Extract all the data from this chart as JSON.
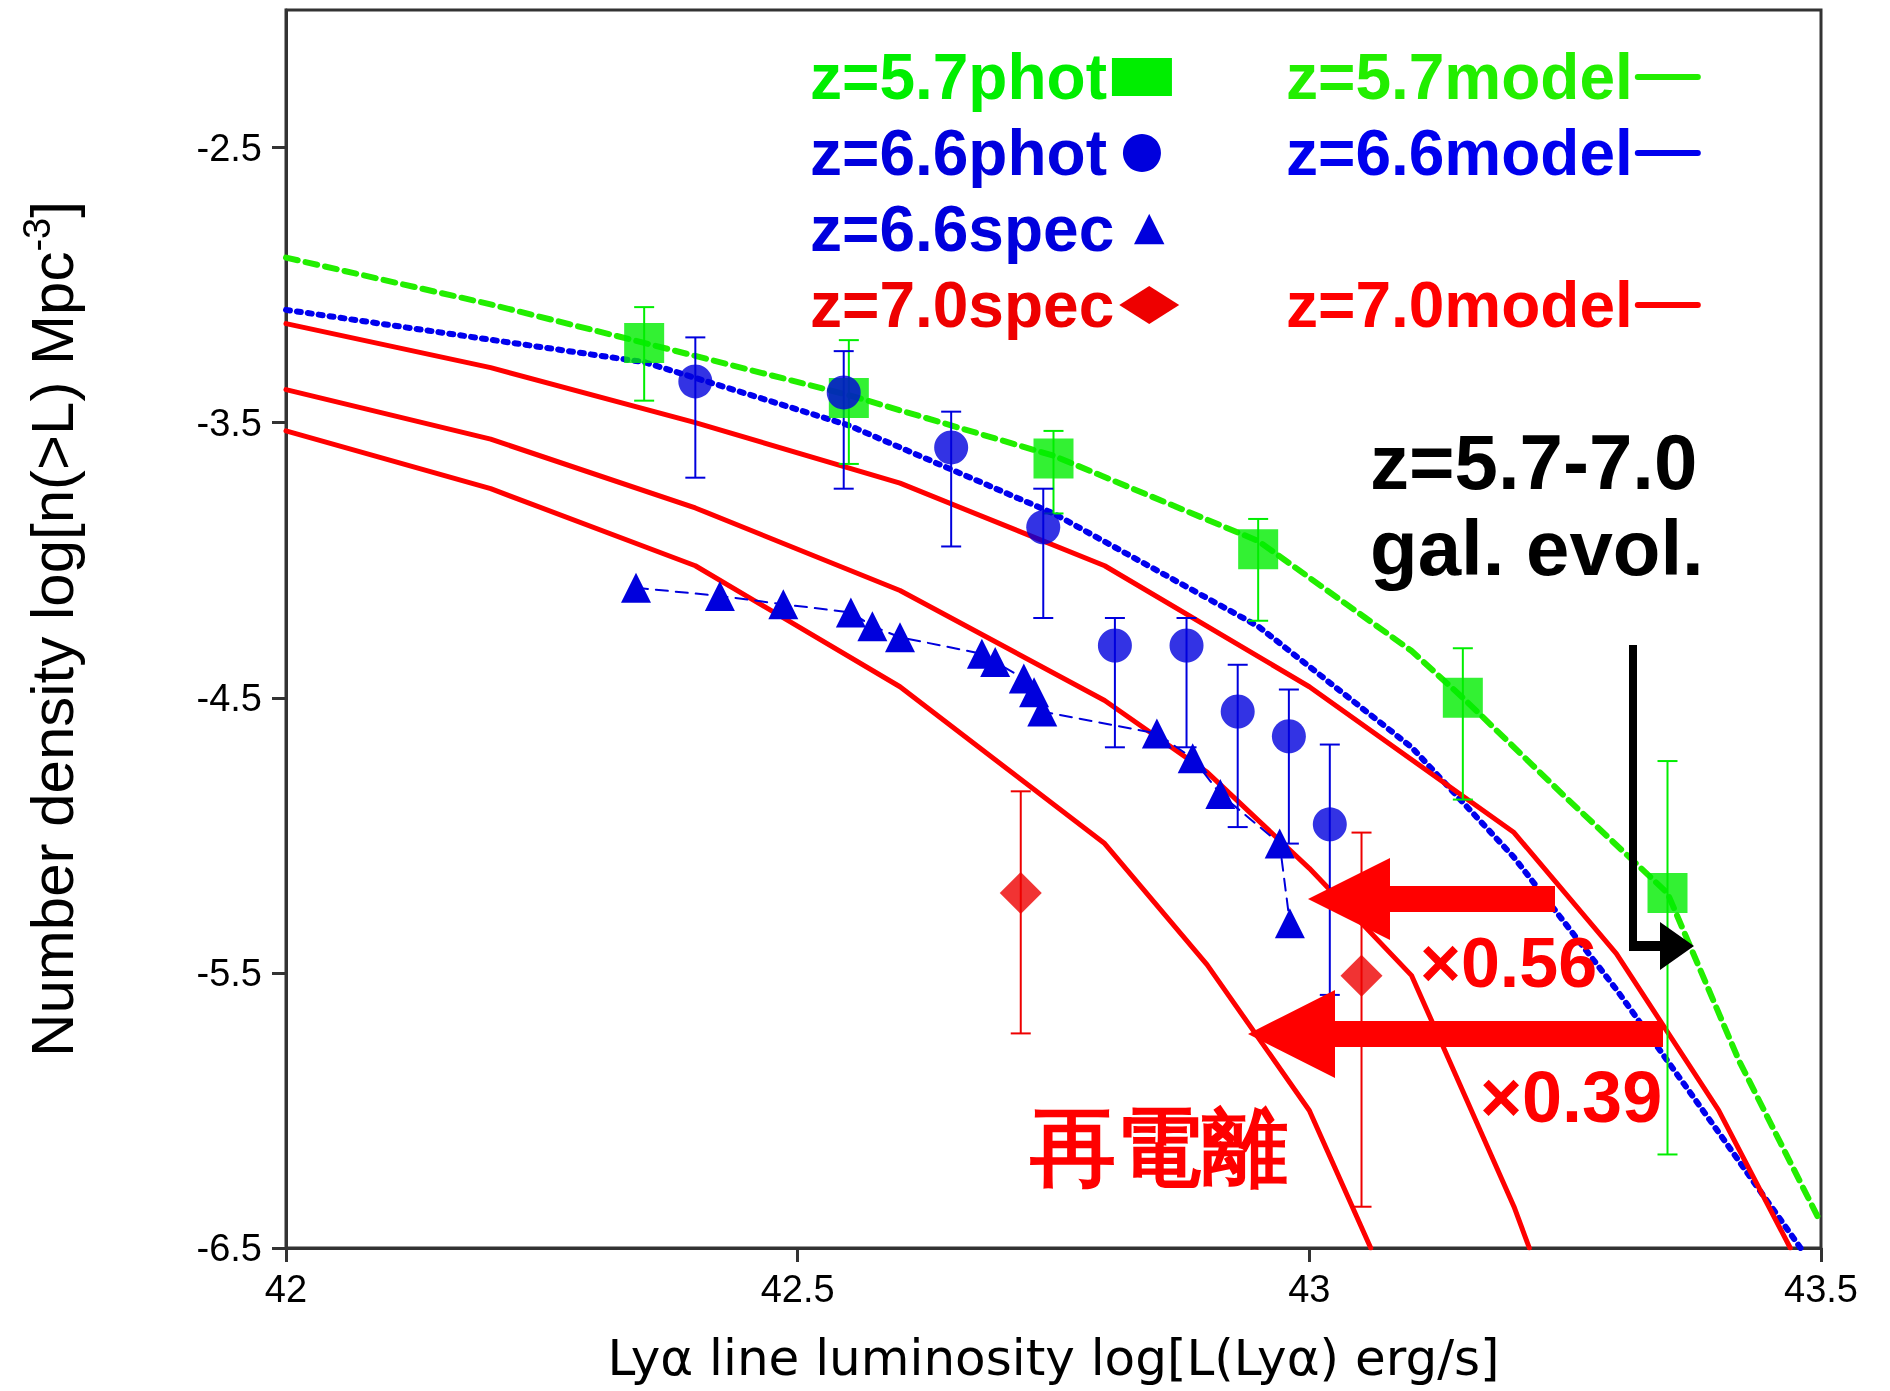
{
  "chart_data": {
    "type": "line",
    "xlabel": "Lyα line luminosity log[L(Lyα) erg/s]",
    "ylabel": "Number density log[n(>L) Mpc$^{-3}$]",
    "xlim": [
      42,
      43.5
    ],
    "xticks": [
      42,
      42.5,
      43,
      43.5
    ],
    "ylim": [
      -6.5,
      -2.0
    ],
    "yticks": [
      -2.5,
      -3.5,
      -4.5,
      -5.5,
      -6.5
    ],
    "grid": false,
    "legend": "top right",
    "series": [
      {
        "name": "z=5.7phot",
        "type": "scatter",
        "marker": "square",
        "color": "#00ee00",
        "x": [
          42.35,
          42.55,
          42.75,
          42.95,
          43.15,
          43.35
        ],
        "values": [
          -3.21,
          -3.41,
          -3.63,
          -3.96,
          -4.5,
          -5.21
        ],
        "errors": [
          [
            -3.42,
            -3.08
          ],
          [
            -3.65,
            -3.2
          ],
          [
            -3.83,
            -3.53
          ],
          [
            -4.22,
            -3.85
          ],
          [
            -4.87,
            -4.32
          ],
          [
            -6.16,
            -4.73
          ]
        ]
      },
      {
        "name": "z=6.6phot",
        "type": "scatter",
        "marker": "circle",
        "color": "#0000dd",
        "x": [
          42.4,
          42.545,
          42.65,
          42.74,
          42.81,
          42.88,
          42.93,
          42.98,
          43.02
        ],
        "values": [
          -3.35,
          -3.39,
          -3.59,
          -3.88,
          -4.31,
          -4.31,
          -4.55,
          -4.64,
          -4.96
        ],
        "errors": [
          [
            -3.7,
            -3.19
          ],
          [
            -3.74,
            -3.24
          ],
          [
            -3.95,
            -3.46
          ],
          [
            -4.21,
            -3.74
          ],
          [
            -4.68,
            -4.21
          ],
          [
            -4.68,
            -4.21
          ],
          [
            -4.97,
            -4.38
          ],
          [
            -5.03,
            -4.47
          ],
          [
            -5.58,
            -4.67
          ]
        ]
      },
      {
        "name": "z=6.6spec",
        "marker": "triangle",
        "line_style": "dashed",
        "color": "#0000dd",
        "x": [
          42.342,
          42.424,
          42.486,
          42.552,
          42.573,
          42.6,
          42.68,
          42.693,
          42.721,
          42.731,
          42.739,
          42.851,
          42.886,
          42.913,
          42.971,
          42.981
        ],
        "values": [
          -4.1,
          -4.13,
          -4.16,
          -4.19,
          -4.24,
          -4.28,
          -4.34,
          -4.37,
          -4.43,
          -4.48,
          -4.55,
          -4.63,
          -4.72,
          -4.85,
          -5.03,
          -5.32
        ]
      },
      {
        "name": "z=7.0spec",
        "type": "scatter",
        "marker": "diamond",
        "color": "#ee0000",
        "x": [
          42.718,
          43.051
        ],
        "values": [
          -5.21,
          -5.51
        ],
        "errors": [
          [
            -5.72,
            -4.84
          ],
          [
            -6.35,
            -4.99
          ]
        ]
      },
      {
        "name": "z=5.7model",
        "marker": "none",
        "line_style": "dashed",
        "color": "#22ee00",
        "x": [
          42.0,
          42.2,
          42.35,
          42.55,
          42.75,
          42.95,
          43.1,
          43.15,
          43.25,
          43.35,
          43.42,
          43.5
        ],
        "values": [
          -2.9,
          -3.07,
          -3.21,
          -3.4,
          -3.62,
          -3.93,
          -4.33,
          -4.5,
          -4.86,
          -5.21,
          -5.82,
          -6.41
        ]
      },
      {
        "name": "z=6.6model",
        "marker": "none",
        "line_style": "dotted",
        "color": "#0000ee",
        "x": [
          42.0,
          42.35,
          42.55,
          42.75,
          42.95,
          43.1,
          43.2,
          43.3,
          43.4,
          43.48
        ],
        "values": [
          -3.09,
          -3.28,
          -3.51,
          -3.83,
          -4.24,
          -4.68,
          -5.08,
          -5.56,
          -6.08,
          -6.5
        ]
      },
      {
        "name": "z=7.0model",
        "marker": "none",
        "line_style": "solid",
        "color": "#ff0000",
        "x": [
          42.0,
          42.2,
          42.4,
          42.6,
          42.8,
          43.0,
          43.2,
          43.3,
          43.4,
          43.47
        ],
        "values": [
          -3.14,
          -3.3,
          -3.5,
          -3.72,
          -4.02,
          -4.46,
          -4.99,
          -5.43,
          -6.0,
          -6.5
        ]
      },
      {
        "marker": "none",
        "line_style": "solid",
        "color": "#ff0000",
        "x": [
          42.0,
          42.2,
          42.4,
          42.6,
          42.8,
          42.9,
          43.0,
          43.1,
          43.2,
          43.215
        ],
        "values": [
          -3.38,
          -3.56,
          -3.81,
          -4.11,
          -4.51,
          -4.77,
          -5.12,
          -5.51,
          -6.35,
          -6.5
        ]
      },
      {
        "marker": "none",
        "line_style": "solid",
        "color": "#ff0000",
        "x": [
          42.0,
          42.2,
          42.4,
          42.6,
          42.8,
          42.9,
          43.0,
          43.06
        ],
        "values": [
          -3.53,
          -3.74,
          -4.02,
          -4.46,
          -5.03,
          -5.47,
          -6.0,
          -6.5
        ]
      }
    ],
    "annotations": [
      "z=5.7-7.0\ngal. evol.",
      "×0.56",
      "×0.39",
      "再電離"
    ]
  }
}
